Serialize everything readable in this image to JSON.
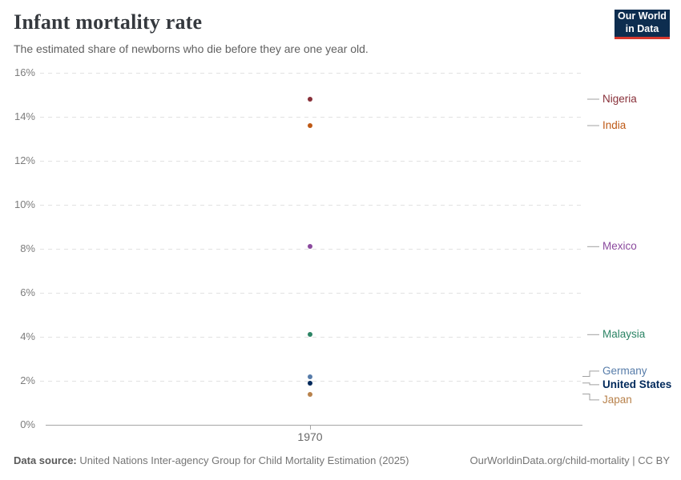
{
  "header": {
    "title": "Infant mortality rate",
    "subtitle": "The estimated share of newborns who die before they are one year old."
  },
  "logo": {
    "line1": "Our World",
    "line2": "in Data",
    "bg_color": "#0d2d4f",
    "accent_color": "#d7382d"
  },
  "chart_data": {
    "type": "scatter",
    "title": "Infant mortality rate",
    "xlabel": "",
    "ylabel": "",
    "x": [
      1970
    ],
    "x_tick_label": "1970",
    "ylim": [
      0,
      16
    ],
    "ytick_step": 2,
    "ytick_labels": [
      "0%",
      "2%",
      "4%",
      "6%",
      "8%",
      "10%",
      "12%",
      "14%",
      "16%"
    ],
    "grid": "horizontal-dashed",
    "legend_position": "right",
    "series": [
      {
        "name": "Nigeria",
        "year": 1970,
        "value": 14.8,
        "label_value": 14.8,
        "color": "#883039",
        "emphasized": false
      },
      {
        "name": "India",
        "year": 1970,
        "value": 13.6,
        "label_value": 13.6,
        "color": "#be5915",
        "emphasized": false
      },
      {
        "name": "Mexico",
        "year": 1970,
        "value": 8.1,
        "label_value": 8.1,
        "color": "#8b4a9e",
        "emphasized": false
      },
      {
        "name": "Malaysia",
        "year": 1970,
        "value": 4.1,
        "label_value": 4.1,
        "color": "#2c8465",
        "emphasized": false
      },
      {
        "name": "Germany",
        "year": 1970,
        "value": 2.2,
        "label_value": 2.44,
        "color": "#577ca9",
        "emphasized": false
      },
      {
        "name": "United States",
        "year": 1970,
        "value": 1.9,
        "label_value": 1.82,
        "color": "#00295b",
        "emphasized": true
      },
      {
        "name": "Japan",
        "year": 1970,
        "value": 1.4,
        "label_value": 1.13,
        "color": "#b8824c",
        "emphasized": false
      }
    ]
  },
  "footer": {
    "source_label": "Data source:",
    "source_text": " United Nations Inter-agency Group for Child Mortality Estimation (2025)",
    "link_text": "OurWorldinData.org/child-mortality | CC BY"
  }
}
